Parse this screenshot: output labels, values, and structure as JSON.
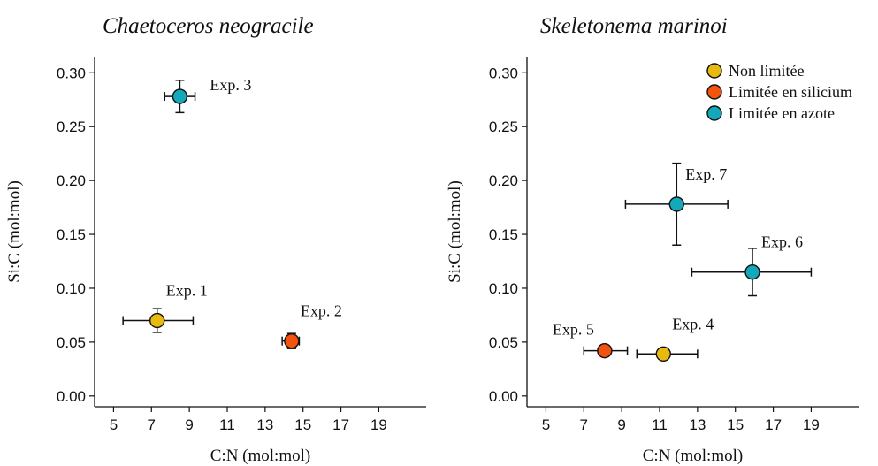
{
  "chart_data": [
    {
      "type": "scatter",
      "title": "Chaetoceros neogracile",
      "xlabel": "C:N (mol:mol)",
      "ylabel": "Si:C (mol:mol)",
      "xlim": [
        4,
        21.5
      ],
      "ylim": [
        -0.01,
        0.315
      ],
      "xticks": [
        "5",
        "7",
        "9",
        "11",
        "13",
        "15",
        "17",
        "19"
      ],
      "yticks": [
        "0.00",
        "0.05",
        "0.10",
        "0.15",
        "0.20",
        "0.25",
        "0.30"
      ],
      "points": [
        {
          "label": "Exp. 3",
          "x": 8.5,
          "y": 0.278,
          "xerr": [
            7.7,
            9.3
          ],
          "yerr": [
            0.263,
            0.293
          ],
          "condition": "n",
          "label_pos": "right"
        },
        {
          "label": "Exp. 1",
          "x": 7.3,
          "y": 0.07,
          "xerr": [
            5.5,
            9.2
          ],
          "yerr": [
            0.059,
            0.081
          ],
          "condition": "none",
          "label_pos": "above-right"
        },
        {
          "label": "Exp. 2",
          "x": 14.4,
          "y": 0.051,
          "xerr": [
            13.9,
            14.8
          ],
          "yerr": [
            0.044,
            0.058
          ],
          "condition": "si",
          "label_pos": "above-right"
        }
      ]
    },
    {
      "type": "scatter",
      "title": "Skeletonema marinoi",
      "xlabel": "C:N (mol:mol)",
      "ylabel": "Si:C (mol:mol)",
      "xlim": [
        4,
        21.5
      ],
      "ylim": [
        -0.01,
        0.315
      ],
      "xticks": [
        "5",
        "7",
        "9",
        "11",
        "13",
        "15",
        "17",
        "19"
      ],
      "yticks": [
        "0.00",
        "0.05",
        "0.10",
        "0.15",
        "0.20",
        "0.25",
        "0.30"
      ],
      "points": [
        {
          "label": "Exp. 7",
          "x": 11.9,
          "y": 0.178,
          "xerr": [
            9.2,
            14.6
          ],
          "yerr": [
            0.14,
            0.216
          ],
          "condition": "n",
          "label_pos": "above-right"
        },
        {
          "label": "Exp. 6",
          "x": 15.9,
          "y": 0.115,
          "xerr": [
            12.7,
            19.0
          ],
          "yerr": [
            0.093,
            0.137
          ],
          "condition": "n",
          "label_pos": "above-right"
        },
        {
          "label": "Exp. 5",
          "x": 8.1,
          "y": 0.042,
          "xerr": [
            7.0,
            9.3
          ],
          "yerr": [
            0.039,
            0.045
          ],
          "condition": "si",
          "label_pos": "above-left"
        },
        {
          "label": "Exp. 4",
          "x": 11.2,
          "y": 0.039,
          "xerr": [
            9.8,
            13.0
          ],
          "yerr": [
            0.036,
            0.042
          ],
          "condition": "none",
          "label_pos": "above-right"
        }
      ],
      "legend": {
        "placement": "top-right",
        "entries": [
          {
            "key": "none",
            "label": "Non limitée",
            "color": "#E8B90E"
          },
          {
            "key": "si",
            "label": "Limitée en silicium",
            "color": "#F2540E"
          },
          {
            "key": "n",
            "label": "Limitée en azote",
            "color": "#13A9BA"
          }
        ]
      }
    }
  ],
  "colors": {
    "none": "#E8B90E",
    "si": "#F2540E",
    "n": "#13A9BA",
    "stroke": "#111111"
  }
}
